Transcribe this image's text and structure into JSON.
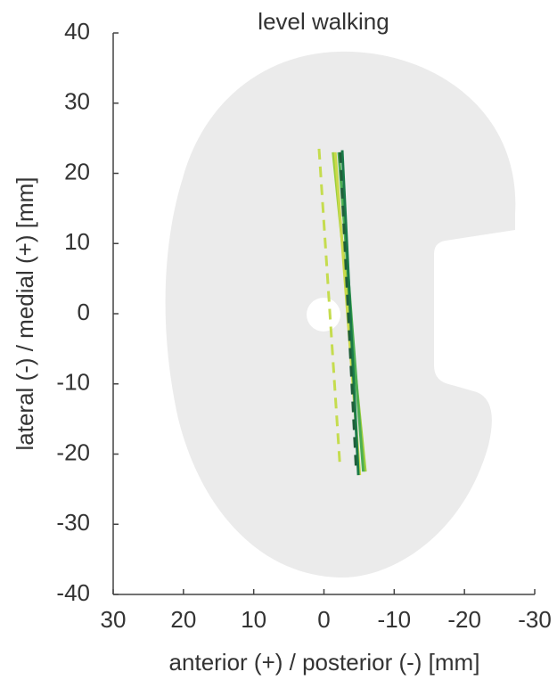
{
  "chart_data": {
    "type": "line",
    "title": "level walking",
    "xlabel": "anterior (+) / posterior (-) [mm]",
    "ylabel": "lateral (-) / medial (+) [mm]",
    "xlim": [
      30,
      -30
    ],
    "xticks": [
      30,
      20,
      10,
      0,
      -10,
      -20,
      -30
    ],
    "ylim": [
      -40,
      40
    ],
    "yticks": [
      40,
      30,
      20,
      10,
      0,
      -10,
      -20,
      -30,
      -40
    ],
    "series": [
      {
        "color": "#c5dc4e",
        "dashed": true,
        "x": [
          0.7,
          -2.3
        ],
        "values": [
          23.5,
          -22
        ]
      },
      {
        "color": "#9ccf3c",
        "dashed": false,
        "x": [
          -1.3,
          -5.9
        ],
        "values": [
          23,
          -22.5
        ]
      },
      {
        "color": "#c9d94a",
        "dashed": false,
        "x": [
          -1.6,
          -5.1
        ],
        "values": [
          23,
          -23
        ]
      },
      {
        "color": "#4cae52",
        "dashed": false,
        "x": [
          -2.1,
          -5.6
        ],
        "values": [
          23,
          -22.5
        ]
      },
      {
        "color": "#1a7a48",
        "dashed": false,
        "x": [
          -2.6,
          -4.9
        ],
        "values": [
          23.3,
          -23
        ]
      },
      {
        "color": "#1f5f3a",
        "dashed": true,
        "x": [
          -2.3,
          -4.6
        ],
        "values": [
          23,
          -22.5
        ]
      }
    ]
  }
}
